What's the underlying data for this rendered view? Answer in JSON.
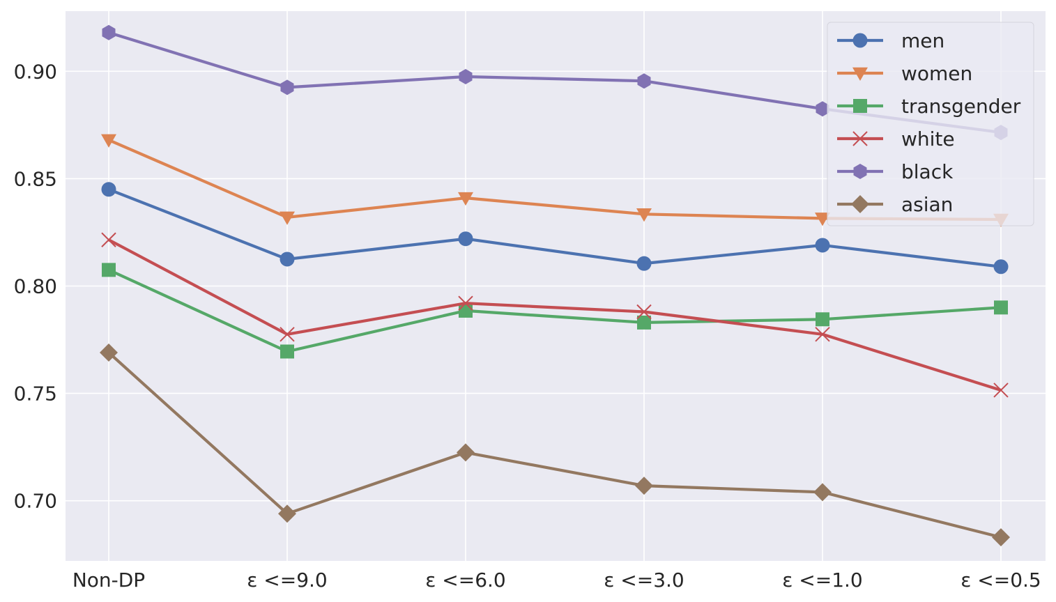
{
  "chart_data": {
    "type": "line",
    "title": "",
    "xlabel": "",
    "ylabel": "",
    "categories": [
      "Non-DP",
      "ε <=9.0",
      "ε <=6.0",
      "ε <=3.0",
      "ε <=1.0",
      "ε <=0.5"
    ],
    "ylim": [
      0.672,
      0.928
    ],
    "yticks": [
      0.7,
      0.75,
      0.8,
      0.85,
      0.9
    ],
    "ytick_labels": [
      "0.70",
      "0.75",
      "0.80",
      "0.85",
      "0.90"
    ],
    "grid": true,
    "legend_position": "top-right",
    "series": [
      {
        "name": "men",
        "color": "#4c72b0",
        "marker": "circle",
        "values": [
          0.845,
          0.8125,
          0.822,
          0.8105,
          0.819,
          0.809
        ]
      },
      {
        "name": "women",
        "color": "#dd8452",
        "marker": "triangle-down",
        "values": [
          0.868,
          0.832,
          0.841,
          0.8335,
          0.8315,
          0.831
        ]
      },
      {
        "name": "transgender",
        "color": "#55a868",
        "marker": "square",
        "values": [
          0.8075,
          0.7695,
          0.7885,
          0.783,
          0.7845,
          0.79
        ]
      },
      {
        "name": "white",
        "color": "#c44e52",
        "marker": "x",
        "values": [
          0.8215,
          0.7775,
          0.792,
          0.788,
          0.7775,
          0.7515
        ]
      },
      {
        "name": "black",
        "color": "#8172b3",
        "marker": "hexagon",
        "values": [
          0.918,
          0.8925,
          0.8975,
          0.8955,
          0.8825,
          0.8715
        ]
      },
      {
        "name": "asian",
        "color": "#937860",
        "marker": "diamond",
        "values": [
          0.769,
          0.694,
          0.7225,
          0.707,
          0.704,
          0.683
        ]
      }
    ]
  }
}
